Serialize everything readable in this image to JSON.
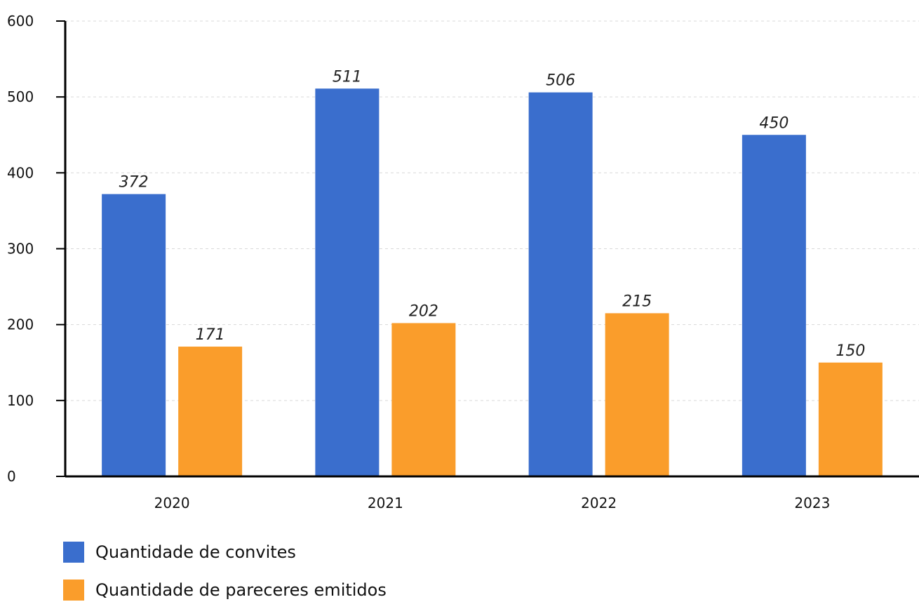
{
  "chart_data": {
    "type": "bar",
    "categories": [
      "2020",
      "2021",
      "2022",
      "2023"
    ],
    "series": [
      {
        "name": "Quantidade de convites",
        "values": [
          372,
          511,
          506,
          450
        ],
        "color": "#3a6ecd"
      },
      {
        "name": "Quantidade de pareceres emitidos",
        "values": [
          171,
          202,
          215,
          150
        ],
        "color": "#fa9d2b"
      }
    ],
    "y_ticks": [
      "0",
      "100",
      "200",
      "300",
      "400",
      "500",
      "600"
    ],
    "ylim": [
      0,
      600
    ],
    "grid": true,
    "legend_position": "bottom-left",
    "title": "",
    "xlabel": "",
    "ylabel": ""
  }
}
